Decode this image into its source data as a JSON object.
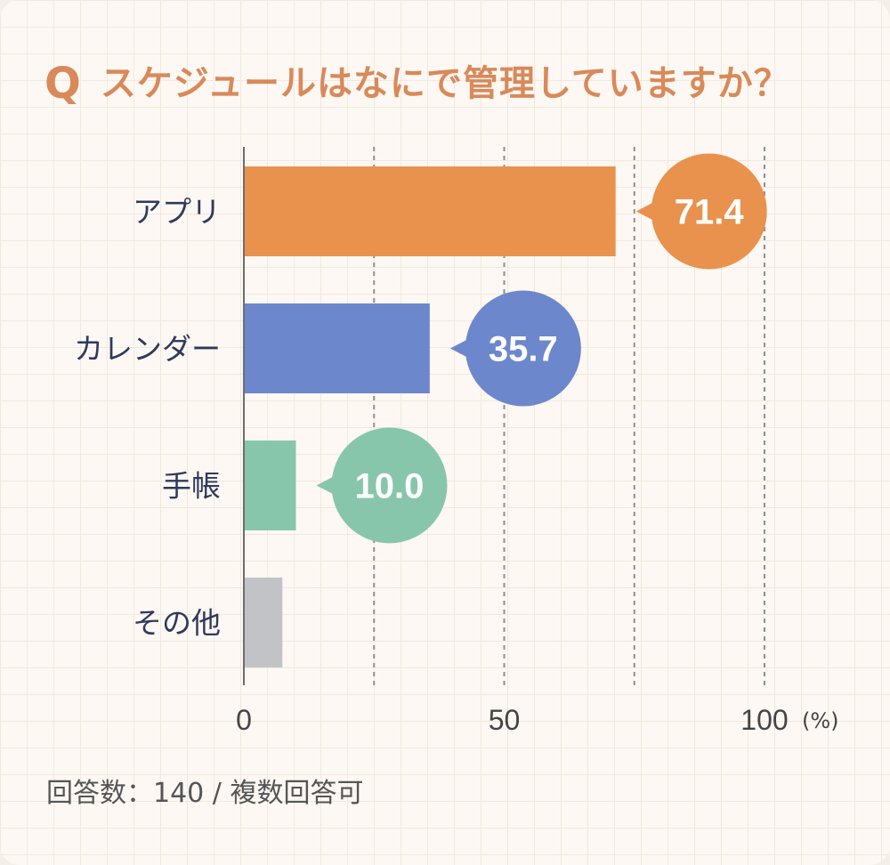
{
  "title": {
    "mark": "Q",
    "question": "スケジュールはなにで管理していますか？"
  },
  "footnote": "回答数：140 / 複数回答可",
  "chart_data": {
    "type": "bar",
    "orientation": "horizontal",
    "categories": [
      "アプリ",
      "カレンダー",
      "手帳",
      "その他"
    ],
    "values": [
      71.4,
      35.7,
      10.0,
      7.4
    ],
    "value_labels": [
      "71.4",
      "35.7",
      "10.0",
      null
    ],
    "colors": [
      "#e8924e",
      "#6d87cc",
      "#88c6ac",
      "#c2c3c6"
    ],
    "xlim": [
      0,
      100
    ],
    "ticks": [
      0,
      50,
      100
    ],
    "tick_labels": [
      "0",
      "50",
      "100"
    ],
    "minor_gridlines": [
      25,
      75
    ],
    "unit": "(%)",
    "grid": true
  }
}
